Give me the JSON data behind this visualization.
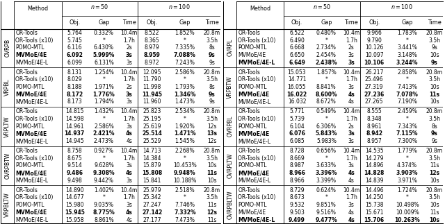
{
  "left_table": {
    "row_groups": [
      {
        "label": "OVRPB",
        "rows": [
          [
            "OR-Tools",
            "5.764",
            "0.332%",
            "10.4m",
            "8.522",
            "1.852%",
            "20.8m"
          ],
          [
            "OR-Tools (x10)",
            "5.745",
            "*",
            "1.7h",
            "8.365",
            "*",
            "3.5h"
          ],
          [
            "POMO-MTL",
            "6.116",
            "6.430%",
            "2s",
            "8.979",
            "7.335%",
            "8s"
          ],
          [
            "MVMoE/4E",
            "6.092",
            "5.999%",
            "3s",
            "8.959",
            "7.088%",
            "9s"
          ],
          [
            "MVMoE/4E-L",
            "6.099",
            "6.131%",
            "3s",
            "8.972",
            "7.243%",
            "9s"
          ]
        ],
        "bold_row": 3
      },
      {
        "label": "VRPBL",
        "rows": [
          [
            "OR-Tools",
            "8.131",
            "1.254%",
            "10.4m",
            "12.095",
            "2.586%",
            "20.8m"
          ],
          [
            "OR-Tools (x10)",
            "8.029",
            "*",
            "1.7h",
            "11.790",
            "*",
            "3.5h"
          ],
          [
            "POMO-MTL",
            "8.188",
            "1.971%",
            "2s",
            "11.998",
            "1.793%",
            "8s"
          ],
          [
            "MVMoE/4E",
            "8.172",
            "1.776%",
            "3s",
            "11.945",
            "1.346%",
            "9s"
          ],
          [
            "MVMoE/4E-L",
            "8.173",
            "1.794%",
            "3s",
            "11.960",
            "1.473%",
            "9s"
          ]
        ],
        "bold_row": 3
      },
      {
        "label": "VRPLTW",
        "rows": [
          [
            "OR-Tools",
            "14.815",
            "1.432%",
            "10.4m",
            "25.823",
            "2.534%",
            "20.8m"
          ],
          [
            "OR-Tools (x10)",
            "14.598",
            "*",
            "1.7h",
            "25.195",
            "*",
            "3.5h"
          ],
          [
            "POMO-MTL",
            "14.961",
            "2.586%",
            "3s",
            "25.619",
            "1.920%",
            "12s"
          ],
          [
            "MVMoE/4E",
            "14.937",
            "2.421%",
            "4s",
            "25.514",
            "1.471%",
            "13s"
          ],
          [
            "MVMoE/4E-L",
            "14.945",
            "2.473%",
            "4s",
            "25.529",
            "1.545%",
            "12s"
          ]
        ],
        "bold_row": 3
      },
      {
        "label": "OVRPBTW",
        "rows": [
          [
            "OR-Tools",
            "8.758",
            "0.927%",
            "10.4m",
            "14.713",
            "2.268%",
            "20.8m"
          ],
          [
            "OR-Tools (x10)",
            "8.675",
            "*",
            "1.7h",
            "14.384",
            "*",
            "3.5h"
          ],
          [
            "POMO-MTL",
            "9.514",
            "9.628%",
            "3s",
            "15.879",
            "10.453%",
            "10s"
          ],
          [
            "MVMoE/4E",
            "9.486",
            "9.308%",
            "4s",
            "15.808",
            "9.948%",
            "11s"
          ],
          [
            "MVMoE/4E-L",
            "9.498",
            "9.442%",
            "3s",
            "15.841",
            "10.188%",
            "10s"
          ]
        ],
        "bold_row": 3
      },
      {
        "label": "VRPBLTW",
        "rows": [
          [
            "OR-Tools",
            "14.890",
            "1.402%",
            "10.4m",
            "25.979",
            "2.518%",
            "20.8m"
          ],
          [
            "OR-Tools (x10)",
            "14.677",
            "*",
            "1.7h",
            "25.342",
            "*",
            "3.5h"
          ],
          [
            "POMO-MTL",
            "15.980",
            "9.035%",
            "3s",
            "27.247",
            "7.746%",
            "11s"
          ],
          [
            "MVMoE/4E",
            "15.945",
            "8.775%",
            "4s",
            "27.142",
            "7.332%",
            "12s"
          ],
          [
            "MVMoE/4E-L",
            "15.958",
            "8.861%",
            "4s",
            "27.177",
            "7.473%",
            "11s"
          ]
        ],
        "bold_row": 3
      }
    ]
  },
  "right_table": {
    "row_groups": [
      {
        "label": "OVRPL",
        "rows": [
          [
            "OR-Tools",
            "6.522",
            "0.480%",
            "10.4m",
            "9.966",
            "1.783%",
            "20.8m"
          ],
          [
            "OR-Tools (x10)",
            "6.490",
            "*",
            "1.7h",
            "9.790",
            "*",
            "3.5h"
          ],
          [
            "POMO-MTL",
            "6.668",
            "2.734%",
            "2s",
            "10.126",
            "3.441%",
            "9s"
          ],
          [
            "MVMoE/4E",
            "6.650",
            "2.454%",
            "3s",
            "10.097",
            "3.148%",
            "10s"
          ],
          [
            "MVMoE/4E-L",
            "6.649",
            "2.438%",
            "3s",
            "10.106",
            "3.244%",
            "9s"
          ]
        ],
        "bold_row": 4
      },
      {
        "label": "VRPBTW",
        "rows": [
          [
            "OR-Tools",
            "15.053",
            "1.857%",
            "10.4m",
            "26.217",
            "2.858%",
            "20.8m"
          ],
          [
            "OR-Tools (x10)",
            "14.771",
            "*",
            "1.7h",
            "25.496",
            "*",
            "3.5h"
          ],
          [
            "POMO-MTL",
            "16.055",
            "8.841%",
            "3s",
            "27.319",
            "7.413%",
            "10s"
          ],
          [
            "MVMoE/4E",
            "16.022",
            "8.600%",
            "4s",
            "27.236",
            "7.078%",
            "11s"
          ],
          [
            "MVMoE/4E-L",
            "16.032",
            "8.672%",
            "4s",
            "27.265",
            "7.190%",
            "10s"
          ]
        ],
        "bold_row": 3
      },
      {
        "label": "OVRPBL",
        "rows": [
          [
            "OR-Tools",
            "5.771",
            "0.549%",
            "10.4m",
            "8.555",
            "2.459%",
            "20.8m"
          ],
          [
            "OR-Tools (x10)",
            "5.739",
            "*",
            "1.7h",
            "8.348",
            "*",
            "3.5h"
          ],
          [
            "POMO-MTL",
            "6.104",
            "6.306%",
            "2s",
            "8.961",
            "7.343%",
            "8s"
          ],
          [
            "MVMoE/4E",
            "6.076",
            "5.843%",
            "3s",
            "8.942",
            "7.115%",
            "9s"
          ],
          [
            "MVMoE/4E-L",
            "6.085",
            "5.983%",
            "3s",
            "8.957",
            "7.300%",
            "9s"
          ]
        ],
        "bold_row": 3
      },
      {
        "label": "OVRPLTW",
        "rows": [
          [
            "OR-Tools",
            "8.728",
            "0.656%",
            "10.4m",
            "14.535",
            "1.779%",
            "20.8m"
          ],
          [
            "OR-Tools (x10)",
            "8.669",
            "*",
            "1.7h",
            "14.279",
            "*",
            "3.5h"
          ],
          [
            "POMO-MTL",
            "8.987",
            "3.633%",
            "3s",
            "14.896",
            "4.374%",
            "11s"
          ],
          [
            "MVMoE/4E",
            "8.966",
            "3.396%",
            "4s",
            "14.828",
            "3.903%",
            "12s"
          ],
          [
            "MVMoE/4E-L",
            "8.966",
            "3.399%",
            "4s",
            "14.839",
            "3.971%",
            "10s"
          ]
        ],
        "bold_row": 3
      },
      {
        "label": "OVRPBLTW",
        "rows": [
          [
            "OR-Tools",
            "8.729",
            "0.624%",
            "10.4m",
            "14.496",
            "1.724%",
            "20.8m"
          ],
          [
            "OR-Tools (x10)",
            "8.673",
            "*",
            "1.7h",
            "14.250",
            "*",
            "3.5h"
          ],
          [
            "POMO-MTL",
            "9.532",
            "9.851%",
            "3s",
            "15.738",
            "10.498%",
            "10s"
          ],
          [
            "MVMoE/4E",
            "9.503",
            "9.516%",
            "4s",
            "15.671",
            "10.009%",
            "11s"
          ],
          [
            "MVMoE/4E-L",
            "9.499",
            "9.477%",
            "4s",
            "15.706",
            "10.263%",
            "10s"
          ]
        ],
        "bold_row": 4
      }
    ]
  },
  "font_size": 5.5,
  "header_font_size": 5.8,
  "label_font_size": 5.5
}
